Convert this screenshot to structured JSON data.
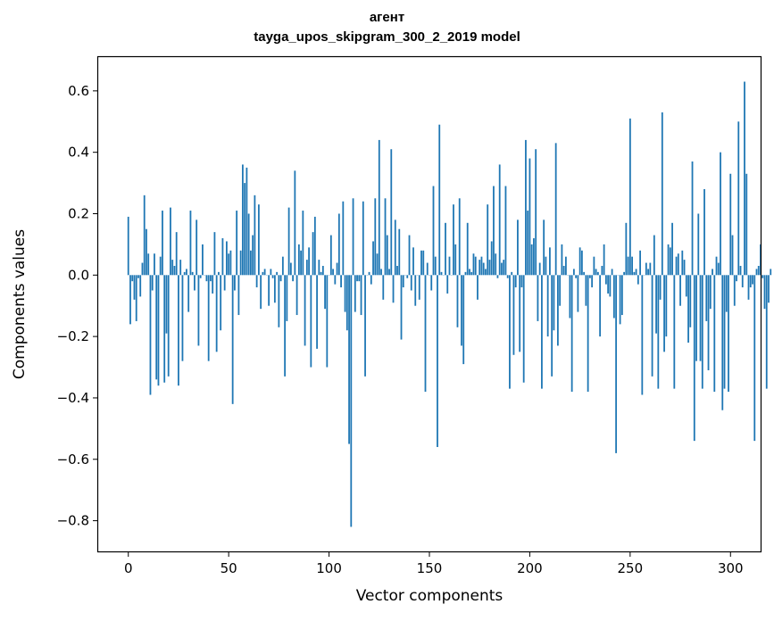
{
  "chart_data": {
    "type": "bar",
    "title_line1": "агент",
    "title_line2": "tayga_upos_skipgram_300_2_2019 model",
    "xlabel": "Vector components",
    "ylabel": "Components values",
    "xlim": [
      -15,
      315
    ],
    "ylim": [
      -0.9,
      0.71
    ],
    "xticks": [
      0,
      50,
      100,
      150,
      200,
      250,
      300
    ],
    "xtick_labels": [
      "0",
      "50",
      "100",
      "150",
      "200",
      "250",
      "300"
    ],
    "yticks": [
      0.6,
      0.4,
      0.2,
      0.0,
      -0.2,
      -0.4,
      -0.6,
      -0.8
    ],
    "ytick_labels": [
      "0.6",
      "0.4",
      "0.2",
      "0.0",
      "−0.2",
      "−0.4",
      "−0.6",
      "−0.8"
    ],
    "bar_color": "#1f77b4",
    "x_start": 0,
    "values": [
      0.19,
      -0.16,
      -0.02,
      -0.08,
      -0.15,
      -0.01,
      -0.07,
      0.04,
      0.26,
      0.15,
      0.07,
      -0.39,
      -0.05,
      0.07,
      -0.34,
      -0.36,
      0.06,
      0.21,
      -0.35,
      -0.19,
      -0.33,
      0.22,
      0.05,
      0.03,
      0.14,
      -0.36,
      0.05,
      -0.28,
      0.01,
      0.02,
      -0.12,
      0.21,
      0.01,
      -0.05,
      0.18,
      -0.23,
      -0.01,
      0.1,
      0.0,
      -0.02,
      -0.28,
      -0.02,
      -0.06,
      0.14,
      -0.25,
      0.01,
      -0.18,
      0.12,
      -0.05,
      0.11,
      0.07,
      0.08,
      -0.42,
      -0.05,
      0.21,
      -0.13,
      0.08,
      0.36,
      0.3,
      0.35,
      0.2,
      0.08,
      0.13,
      0.26,
      -0.04,
      0.23,
      -0.11,
      0.01,
      0.02,
      0.0,
      -0.1,
      0.02,
      -0.01,
      -0.09,
      0.01,
      -0.17,
      -0.02,
      0.06,
      -0.33,
      -0.15,
      0.22,
      0.04,
      -0.02,
      0.34,
      -0.13,
      0.1,
      0.08,
      0.21,
      -0.23,
      0.05,
      0.09,
      -0.3,
      0.14,
      0.19,
      -0.24,
      0.05,
      0.01,
      0.03,
      -0.11,
      -0.3,
      0.0,
      0.13,
      0.02,
      -0.03,
      0.04,
      0.2,
      -0.04,
      0.24,
      -0.12,
      -0.18,
      -0.55,
      -0.82,
      0.25,
      -0.12,
      -0.02,
      -0.02,
      -0.13,
      0.24,
      -0.33,
      0.0,
      0.01,
      -0.03,
      0.11,
      0.25,
      0.07,
      0.44,
      0.02,
      -0.08,
      0.25,
      0.13,
      0.02,
      0.41,
      -0.09,
      0.18,
      0.03,
      0.15,
      -0.21,
      -0.04,
      0.0,
      -0.01,
      0.13,
      -0.05,
      0.09,
      -0.1,
      0.0,
      -0.08,
      0.08,
      0.08,
      -0.38,
      0.04,
      0.0,
      -0.05,
      0.29,
      0.06,
      -0.56,
      0.49,
      0.01,
      0.0,
      0.17,
      -0.06,
      0.06,
      0.0,
      0.23,
      0.1,
      -0.17,
      0.25,
      -0.23,
      -0.29,
      0.01,
      0.17,
      0.02,
      0.01,
      0.07,
      0.06,
      -0.08,
      0.05,
      0.06,
      0.04,
      0.02,
      0.23,
      0.05,
      0.11,
      0.29,
      0.07,
      -0.01,
      0.36,
      0.04,
      0.05,
      0.29,
      -0.01,
      -0.37,
      0.01,
      -0.26,
      -0.04,
      0.18,
      -0.25,
      -0.04,
      -0.35,
      0.44,
      0.21,
      0.38,
      0.1,
      0.12,
      0.41,
      -0.15,
      0.04,
      -0.37,
      0.18,
      0.06,
      -0.2,
      0.09,
      -0.33,
      -0.18,
      0.43,
      -0.23,
      -0.1,
      0.1,
      0.03,
      0.06,
      0.0,
      -0.14,
      -0.38,
      0.02,
      -0.01,
      -0.12,
      0.09,
      0.08,
      0.01,
      -0.1,
      -0.38,
      -0.01,
      -0.04,
      0.06,
      0.02,
      0.01,
      -0.2,
      0.03,
      0.1,
      -0.03,
      -0.06,
      -0.07,
      0.02,
      -0.14,
      -0.58,
      0.0,
      -0.16,
      -0.13,
      0.01,
      0.17,
      0.06,
      0.51,
      0.06,
      0.01,
      0.02,
      -0.03,
      0.08,
      -0.39,
      0.0,
      0.04,
      0.02,
      0.04,
      -0.33,
      0.13,
      -0.19,
      -0.37,
      -0.08,
      0.53,
      -0.25,
      -0.2,
      0.1,
      0.09,
      0.17,
      -0.37,
      0.06,
      0.07,
      -0.1,
      0.08,
      0.05,
      -0.07,
      -0.22,
      -0.17,
      0.37,
      -0.54,
      -0.28,
      0.2,
      -0.28,
      -0.37,
      0.28,
      -0.15,
      -0.31,
      -0.11,
      0.02,
      -0.38,
      0.06,
      0.04,
      0.4,
      -0.44,
      -0.37,
      -0.12,
      -0.38,
      0.33,
      0.13,
      -0.1,
      -0.02,
      0.5,
      0.03,
      -0.04,
      0.63,
      0.33,
      -0.08,
      -0.04,
      -0.03,
      -0.54,
      0.02,
      0.03,
      0.1,
      -0.01,
      -0.11,
      -0.37,
      -0.09,
      0.02
    ]
  }
}
